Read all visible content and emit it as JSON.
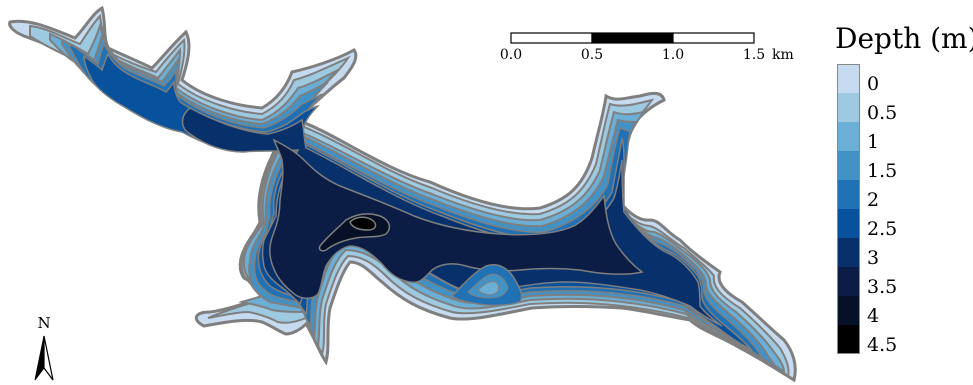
{
  "legend": {
    "title": "Depth (m)",
    "items": [
      {
        "label": "0",
        "color": "#c6dbef"
      },
      {
        "label": "0.5",
        "color": "#9ecae1"
      },
      {
        "label": "1",
        "color": "#6baed6"
      },
      {
        "label": "1.5",
        "color": "#4292c6"
      },
      {
        "label": "2",
        "color": "#2171b5"
      },
      {
        "label": "2.5",
        "color": "#08519c"
      },
      {
        "label": "3",
        "color": "#08306b"
      },
      {
        "label": "3.5",
        "color": "#0b1d44"
      },
      {
        "label": "4",
        "color": "#061026"
      },
      {
        "label": "4.5",
        "color": "#000000"
      }
    ]
  },
  "scale_bar": {
    "ticks": [
      "0.0",
      "0.5",
      "1.0",
      "1.5"
    ],
    "unit": "km"
  },
  "north_arrow": {
    "label": "N"
  },
  "colors": {
    "contour": "#7f7f7f",
    "background": "#ffffff"
  }
}
